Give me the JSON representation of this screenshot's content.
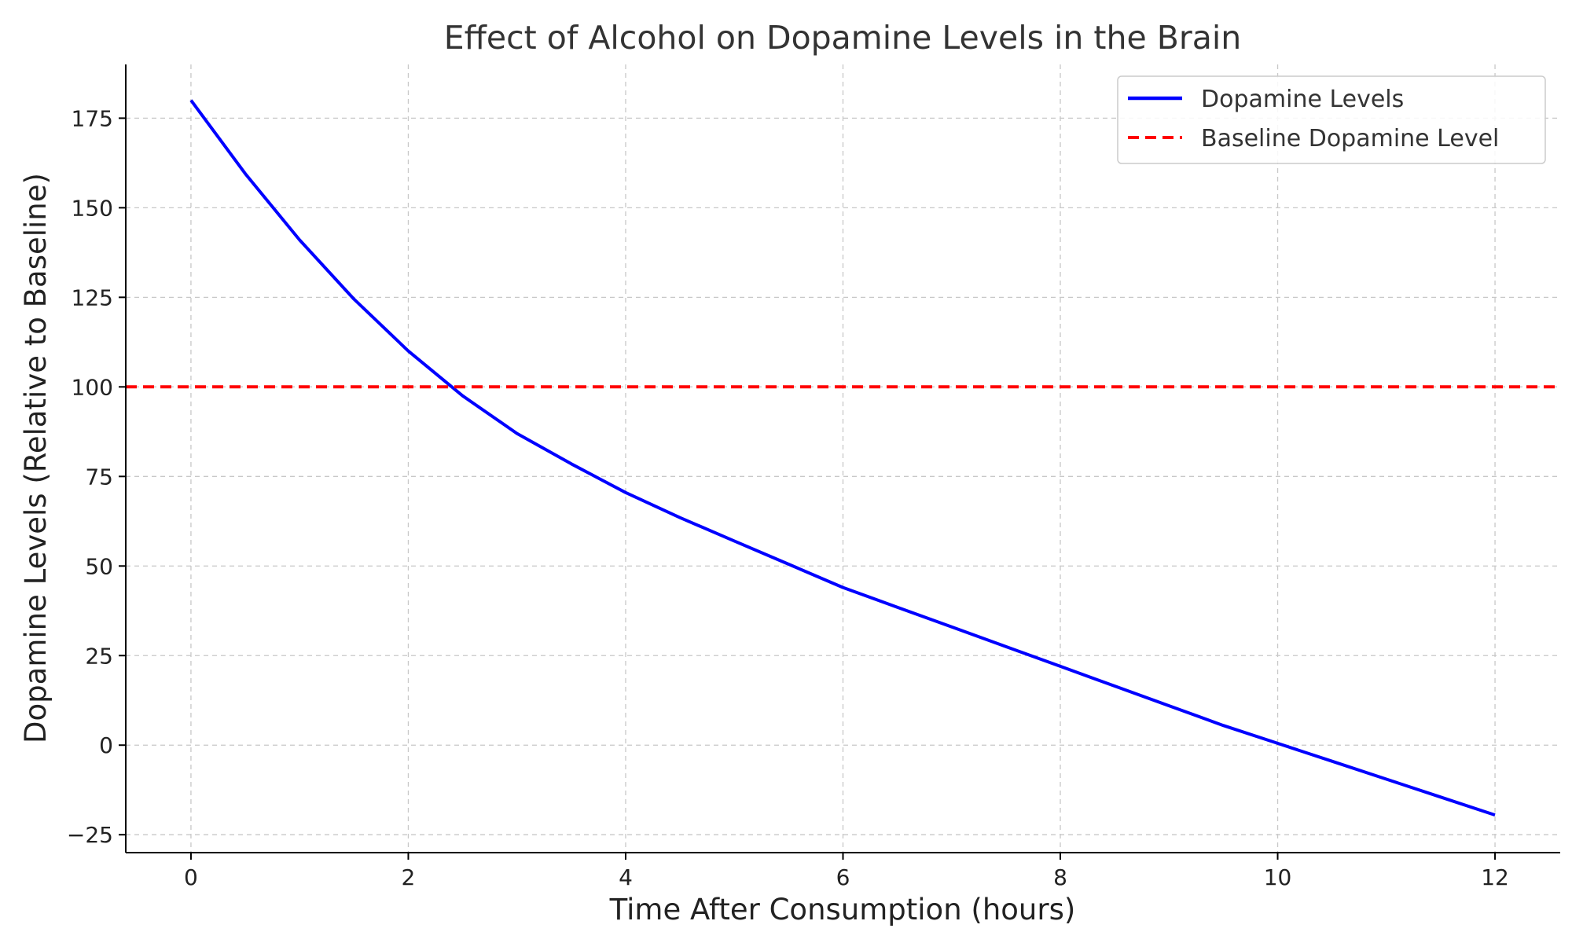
{
  "chart_data": {
    "type": "line",
    "title": "Effect of Alcohol on Dopamine Levels in the Brain",
    "xlabel": "Time After Consumption (hours)",
    "ylabel": "Dopamine Levels (Relative to Baseline)",
    "xlim": [
      -0.6,
      12.6
    ],
    "ylim": [
      -30,
      190
    ],
    "x_ticks": [
      0,
      2,
      4,
      6,
      8,
      10,
      12
    ],
    "y_ticks": [
      -25,
      0,
      25,
      50,
      75,
      100,
      125,
      150,
      175
    ],
    "x_tick_labels": [
      "0",
      "2",
      "4",
      "6",
      "8",
      "10",
      "12"
    ],
    "y_tick_labels": [
      "−25",
      "0",
      "25",
      "50",
      "75",
      "100",
      "125",
      "150",
      "175"
    ],
    "grid": true,
    "legend_position": "top-right",
    "series": [
      {
        "name": "Dopamine Levels",
        "color": "#0000ff",
        "style": "solid",
        "x": [
          0,
          0.5,
          1,
          1.5,
          2,
          2.5,
          3,
          3.5,
          4,
          4.5,
          5,
          5.5,
          6,
          6.5,
          7,
          7.5,
          8,
          8.5,
          9,
          9.5,
          10,
          10.5,
          11,
          11.5,
          12
        ],
        "y": [
          180,
          159.5,
          141,
          124.5,
          110,
          97.5,
          87,
          78.5,
          70.5,
          63.5,
          57,
          50.5,
          44,
          38.5,
          33,
          27.5,
          22,
          16.5,
          11,
          5.5,
          0.5,
          -4.5,
          -9.5,
          -14.5,
          -19.5
        ]
      },
      {
        "name": "Baseline Dopamine Level",
        "color": "#ff0000",
        "style": "dashed",
        "x": [
          -0.6,
          12.6
        ],
        "y": [
          100,
          100
        ]
      }
    ]
  }
}
